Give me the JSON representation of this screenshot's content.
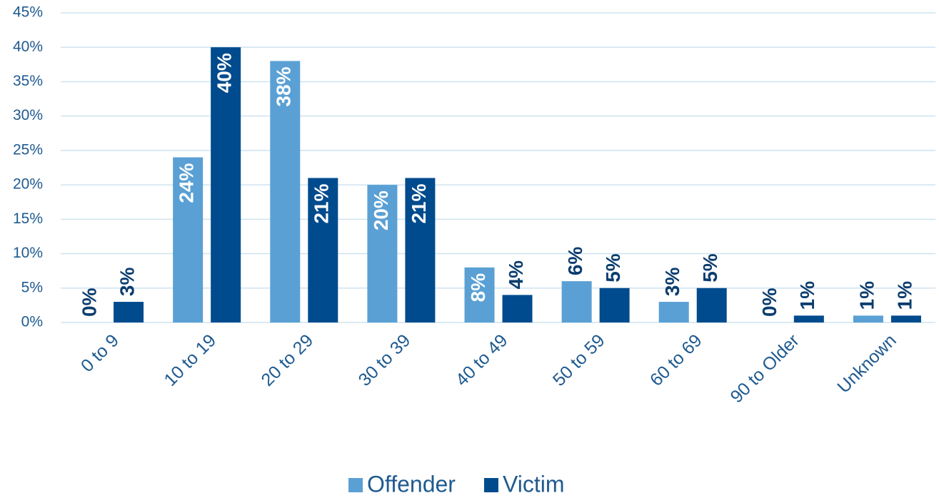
{
  "chart_data": {
    "type": "bar",
    "categories": [
      "0 to 9",
      "10 to 19",
      "20 to 29",
      "30 to 39",
      "40 to 49",
      "50 to 59",
      "60 to 69",
      "90 to Older",
      "Unknown"
    ],
    "series": [
      {
        "name": "Offender",
        "color": "#5aa0d4",
        "values": [
          0,
          24,
          38,
          20,
          8,
          6,
          3,
          0,
          1
        ],
        "value_labels": [
          "0%",
          "24%",
          "38%",
          "20%",
          "8%",
          "6%",
          "3%",
          "0%",
          "1%"
        ]
      },
      {
        "name": "Victim",
        "color": "#004b8d",
        "values": [
          3,
          40,
          21,
          21,
          4,
          5,
          5,
          1,
          1
        ],
        "value_labels": [
          "3%",
          "40%",
          "21%",
          "21%",
          "4%",
          "5%",
          "5%",
          "1%",
          "1%"
        ]
      }
    ],
    "ylim": [
      0,
      45
    ],
    "yticks": [
      {
        "value": 0,
        "label": "0%"
      },
      {
        "value": 5,
        "label": "5%"
      },
      {
        "value": 10,
        "label": "10%"
      },
      {
        "value": 15,
        "label": "15%"
      },
      {
        "value": 20,
        "label": "20%"
      },
      {
        "value": 25,
        "label": "25%"
      },
      {
        "value": 30,
        "label": "30%"
      },
      {
        "value": 35,
        "label": "35%"
      },
      {
        "value": 40,
        "label": "40%"
      },
      {
        "value": 45,
        "label": "45%"
      }
    ],
    "grid": true,
    "legend": "bottom"
  }
}
